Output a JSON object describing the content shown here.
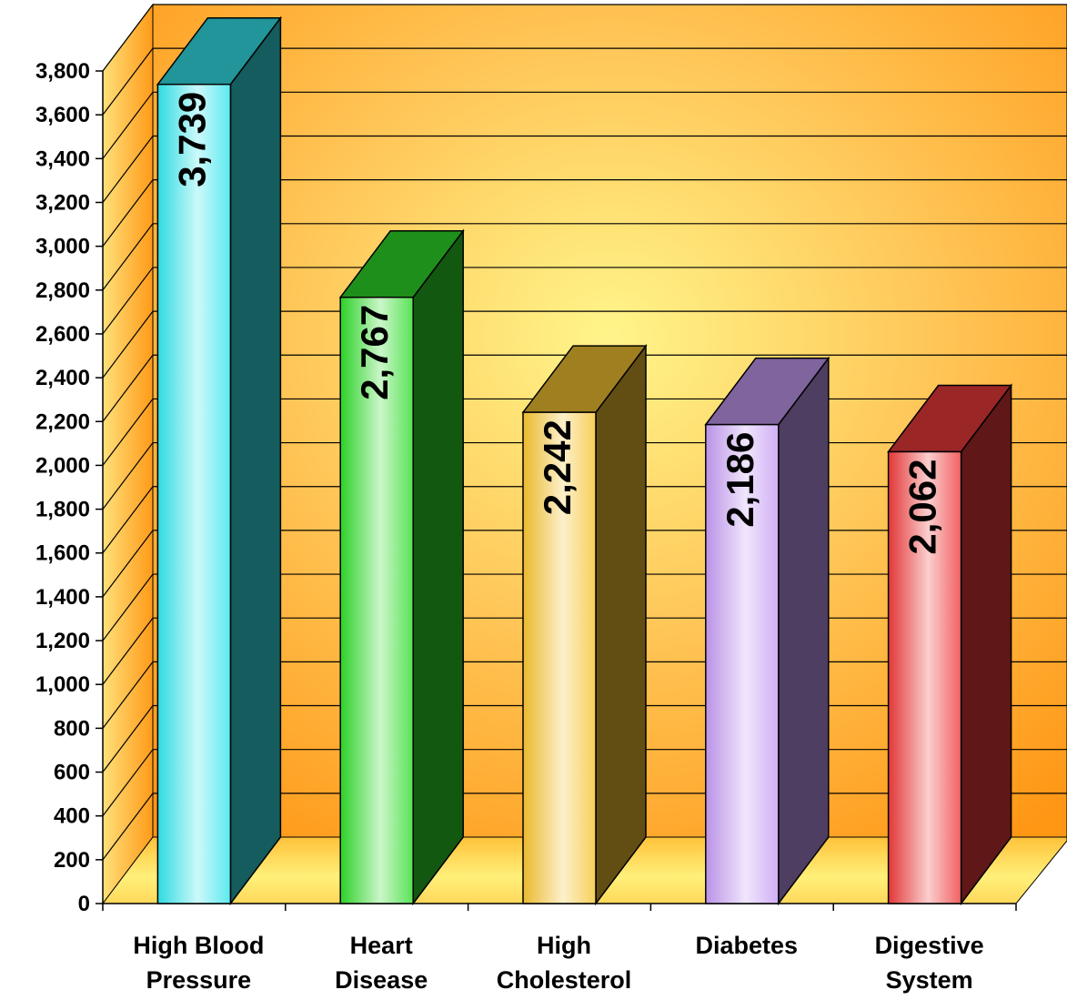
{
  "chart_data": {
    "type": "bar",
    "style": "3d-column",
    "title": "",
    "xlabel": "",
    "ylabel": "",
    "ylim": [
      0,
      3800
    ],
    "ytick_step": 200,
    "yticks": [
      "0",
      "200",
      "400",
      "600",
      "800",
      "1,000",
      "1,200",
      "1,400",
      "1,600",
      "1,800",
      "2,000",
      "2,200",
      "2,400",
      "2,600",
      "2,800",
      "3,000",
      "3,200",
      "3,400",
      "3,600",
      "3,800"
    ],
    "grid": true,
    "legend": "none",
    "categories": [
      [
        "High Blood",
        "Pressure"
      ],
      [
        "Heart",
        "Disease"
      ],
      [
        "High",
        "Cholesterol"
      ],
      [
        "Diabetes"
      ],
      [
        "Digestive",
        "System"
      ]
    ],
    "values": [
      3739,
      2767,
      2242,
      2186,
      2062
    ],
    "value_labels": [
      "3,739",
      "2,767",
      "2,242",
      "2,186",
      "2,062"
    ],
    "colors": {
      "bars": [
        "#33e5ec",
        "#2fdc2a",
        "#f5c330",
        "#c49af2",
        "#ee3a3a"
      ],
      "wall": "#ff9d1c",
      "wall_highlight": "#fff27a",
      "floor": "#ffcd4a"
    }
  }
}
